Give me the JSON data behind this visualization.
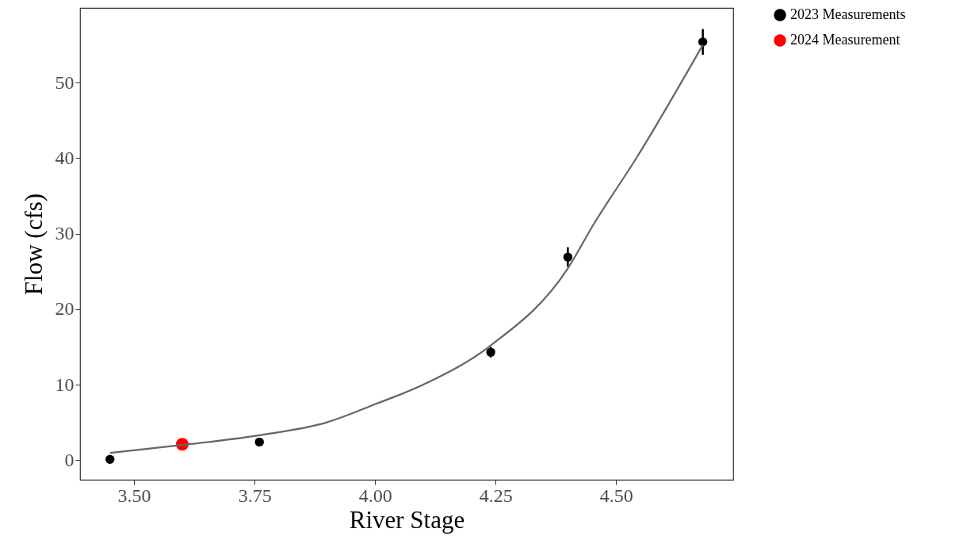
{
  "chart_data": {
    "type": "scatter",
    "xlabel": "River Stage",
    "ylabel": "Flow (cfs)",
    "xlim": [
      3.388,
      4.743
    ],
    "xticks": [
      {
        "value": 3.5,
        "label": "3.50"
      },
      {
        "value": 3.75,
        "label": "3.75"
      },
      {
        "value": 4,
        "label": "4.00"
      },
      {
        "value": 4.25,
        "label": "4.25"
      },
      {
        "value": 4.5,
        "label": "4.50"
      }
    ],
    "ylim": [
      -2.6,
      59.9
    ],
    "yticks": [
      0,
      10,
      20,
      30,
      40,
      50
    ],
    "grid": false,
    "legend": "right",
    "marker": "circle",
    "series": [
      {
        "name": "2023 Measurements",
        "color": "#000000",
        "x": [
          3.45,
          3.76,
          4.24,
          4.4,
          4.68
        ],
        "values": [
          0.1,
          2.4,
          14.3,
          26.9,
          55.4
        ],
        "errors": [
          null,
          null,
          0.7,
          1.3,
          1.7
        ]
      },
      {
        "name": "2024 Measurement",
        "color": "#ff0000",
        "x": [
          3.6
        ],
        "values": [
          2.1
        ]
      },
      {
        "type": "line",
        "color": "#666666",
        "marker": "none",
        "line_style": "solid",
        "x": [
          3.45,
          3.6,
          3.76,
          3.9,
          4.0,
          4.1,
          4.24,
          4.4,
          4.454,
          4.543,
          4.68
        ],
        "values": [
          0.95,
          2.0,
          3.3,
          5.0,
          7.4,
          10.0,
          15.2,
          25.4,
          31.3,
          40.1,
          55.0
        ]
      }
    ]
  }
}
